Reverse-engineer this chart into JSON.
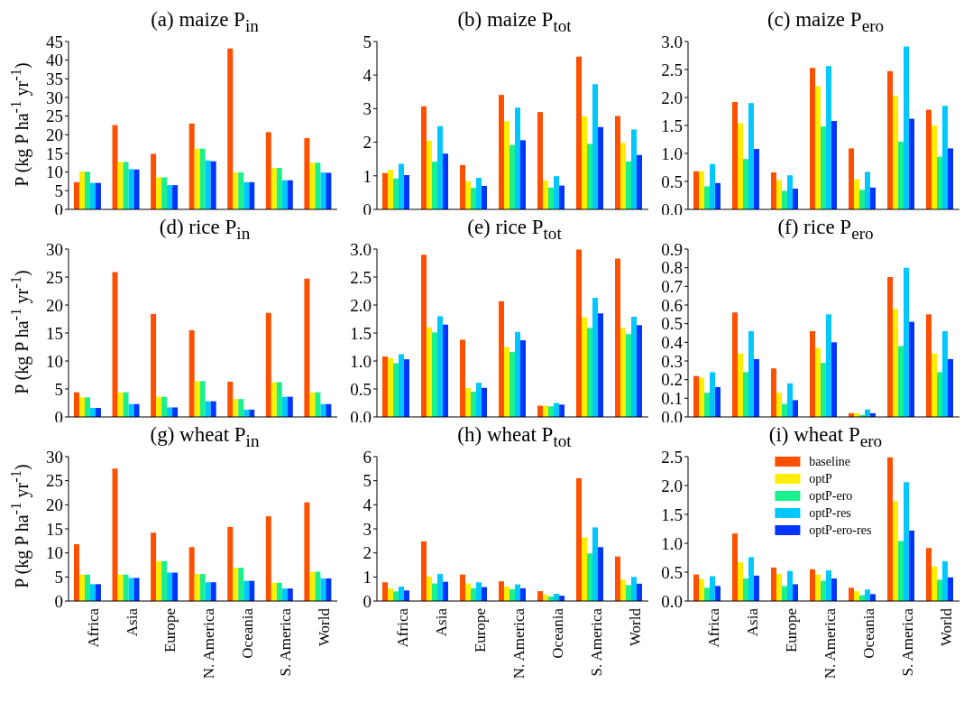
{
  "chart_data": [
    {
      "type": "bar",
      "title": "(a) maize P$_{in}$",
      "ylabel": "P (kg P ha$^{-1}$ yr$^{-1}$)",
      "categories": [
        null,
        null,
        null,
        null,
        null,
        null,
        null
      ],
      "ylim": [
        0,
        45
      ],
      "yticks": [
        0,
        5,
        10,
        15,
        20,
        25,
        30,
        35,
        40,
        45
      ],
      "series": [
        {
          "color": "#ff5000",
          "values": [
            7.3,
            22.6,
            14.9,
            23.0,
            43.1,
            20.7,
            19.1
          ]
        },
        {
          "color": "#ffee00",
          "values": [
            10.1,
            12.7,
            8.6,
            16.3,
            9.9,
            11.1,
            12.5
          ]
        },
        {
          "color": "#1af08c",
          "values": [
            10.1,
            12.7,
            8.6,
            16.3,
            9.9,
            11.1,
            12.5
          ]
        },
        {
          "color": "#00c8ff",
          "values": [
            7.1,
            10.8,
            6.5,
            13.1,
            7.3,
            7.8,
            9.9
          ]
        },
        {
          "color": "#0035ff",
          "values": [
            7.1,
            10.7,
            6.5,
            12.9,
            7.3,
            7.8,
            9.8
          ]
        }
      ]
    },
    {
      "type": "bar",
      "title": "(b) maize P$_{tot}$",
      "categories": [
        null,
        null,
        null,
        null,
        null,
        null,
        null
      ],
      "ylim": [
        0,
        5
      ],
      "yticks": [
        0,
        1,
        2,
        3,
        4,
        5
      ],
      "series": [
        {
          "color": "#ff5000",
          "values": [
            1.08,
            3.07,
            1.32,
            3.41,
            2.9,
            4.55,
            2.78
          ]
        },
        {
          "color": "#ffee00",
          "values": [
            1.18,
            2.05,
            0.84,
            2.63,
            0.86,
            2.77,
            1.98
          ]
        },
        {
          "color": "#1af08c",
          "values": [
            0.92,
            1.42,
            0.64,
            1.92,
            0.65,
            1.95,
            1.43
          ]
        },
        {
          "color": "#00c8ff",
          "values": [
            1.36,
            2.48,
            0.94,
            3.03,
            0.99,
            3.73,
            2.38
          ]
        },
        {
          "color": "#0035ff",
          "values": [
            1.02,
            1.66,
            0.7,
            2.06,
            0.71,
            2.45,
            1.62
          ]
        }
      ]
    },
    {
      "type": "bar",
      "title": "(c) maize P$_{ero}$",
      "categories": [
        null,
        null,
        null,
        null,
        null,
        null,
        null
      ],
      "ylim": [
        0,
        3
      ],
      "yticks": [
        {
          "value": 0,
          "label": "0.0"
        },
        0.5,
        {
          "value": 1,
          "label": "1.0"
        },
        1.5,
        {
          "value": 2,
          "label": "2.0"
        },
        2.5,
        {
          "value": 3,
          "label": "3.0"
        }
      ],
      "series": [
        {
          "color": "#ff5000",
          "values": [
            0.68,
            1.92,
            0.66,
            2.53,
            1.09,
            2.47,
            1.78
          ]
        },
        {
          "color": "#ffee00",
          "values": [
            0.68,
            1.54,
            0.52,
            2.2,
            0.54,
            2.03,
            1.5
          ]
        },
        {
          "color": "#1af08c",
          "values": [
            0.41,
            0.9,
            0.33,
            1.48,
            0.35,
            1.21,
            0.94
          ]
        },
        {
          "color": "#00c8ff",
          "values": [
            0.81,
            1.9,
            0.61,
            2.56,
            0.67,
            2.91,
            1.85
          ]
        },
        {
          "color": "#0035ff",
          "values": [
            0.47,
            1.08,
            0.37,
            1.58,
            0.39,
            1.62,
            1.09
          ]
        }
      ]
    },
    {
      "type": "bar",
      "title": "(d) rice P$_{in}$",
      "ylabel": "P (kg P ha$^{-1}$ yr$^{-1}$)",
      "categories": [
        null,
        null,
        null,
        null,
        null,
        null,
        null
      ],
      "ylim": [
        0,
        30
      ],
      "yticks": [
        0,
        5,
        10,
        15,
        20,
        25,
        30
      ],
      "series": [
        {
          "color": "#ff5000",
          "values": [
            4.4,
            25.9,
            18.4,
            15.5,
            6.3,
            18.6,
            24.7
          ]
        },
        {
          "color": "#ffee00",
          "values": [
            3.5,
            4.4,
            3.6,
            6.4,
            3.2,
            6.2,
            4.4
          ]
        },
        {
          "color": "#1af08c",
          "values": [
            3.5,
            4.4,
            3.6,
            6.4,
            3.2,
            6.2,
            4.4
          ]
        },
        {
          "color": "#00c8ff",
          "values": [
            1.6,
            2.3,
            1.7,
            2.8,
            1.3,
            3.6,
            2.3
          ]
        },
        {
          "color": "#0035ff",
          "values": [
            1.6,
            2.3,
            1.7,
            2.8,
            1.3,
            3.6,
            2.3
          ]
        }
      ]
    },
    {
      "type": "bar",
      "title": "(e) rice P$_{tot}$",
      "categories": [
        null,
        null,
        null,
        null,
        null,
        null,
        null
      ],
      "ylim": [
        0,
        3
      ],
      "yticks": [
        {
          "value": 0,
          "label": "0.0"
        },
        0.5,
        {
          "value": 1,
          "label": "1.0"
        },
        1.5,
        {
          "value": 2,
          "label": "2.0"
        },
        2.5,
        {
          "value": 3,
          "label": "3.0"
        }
      ],
      "series": [
        {
          "color": "#ff5000",
          "values": [
            1.08,
            2.9,
            1.38,
            2.07,
            0.2,
            2.99,
            2.83
          ]
        },
        {
          "color": "#ffee00",
          "values": [
            1.05,
            1.6,
            0.52,
            1.25,
            0.2,
            1.78,
            1.59
          ]
        },
        {
          "color": "#1af08c",
          "values": [
            0.96,
            1.51,
            0.45,
            1.16,
            0.19,
            1.59,
            1.48
          ]
        },
        {
          "color": "#00c8ff",
          "values": [
            1.12,
            1.8,
            0.61,
            1.52,
            0.25,
            2.13,
            1.79
          ]
        },
        {
          "color": "#0035ff",
          "values": [
            1.03,
            1.65,
            0.52,
            1.37,
            0.22,
            1.85,
            1.64
          ]
        }
      ]
    },
    {
      "type": "bar",
      "title": "(f) rice P$_{ero}$",
      "categories": [
        null,
        null,
        null,
        null,
        null,
        null,
        null
      ],
      "ylim": [
        0,
        0.9
      ],
      "yticks": [
        {
          "value": 0,
          "label": "0.0"
        },
        0.1,
        0.2,
        0.3,
        0.4,
        0.5,
        0.6,
        0.7,
        0.8,
        0.9
      ],
      "series": [
        {
          "color": "#ff5000",
          "values": [
            0.22,
            0.56,
            0.26,
            0.46,
            0.02,
            0.75,
            0.55
          ]
        },
        {
          "color": "#ffee00",
          "values": [
            0.21,
            0.34,
            0.13,
            0.37,
            0.02,
            0.58,
            0.34
          ]
        },
        {
          "color": "#1af08c",
          "values": [
            0.13,
            0.24,
            0.07,
            0.29,
            0.01,
            0.38,
            0.24
          ]
        },
        {
          "color": "#00c8ff",
          "values": [
            0.24,
            0.46,
            0.18,
            0.55,
            0.04,
            0.8,
            0.46
          ]
        },
        {
          "color": "#0035ff",
          "values": [
            0.16,
            0.31,
            0.09,
            0.4,
            0.02,
            0.51,
            0.31
          ]
        }
      ]
    },
    {
      "type": "bar",
      "title": "(g) wheat P$_{in}$",
      "ylabel": "P (kg P ha$^{-1}$ yr$^{-1}$)",
      "categories": [
        "Africa",
        "Asia",
        "Europe",
        "N. America",
        "Oceania",
        "S. America",
        "World"
      ],
      "ylim": [
        0,
        30
      ],
      "yticks": [
        0,
        5,
        10,
        15,
        20,
        25,
        30
      ],
      "series": [
        {
          "color": "#ff5000",
          "values": [
            11.8,
            27.5,
            14.2,
            11.2,
            15.4,
            17.6,
            20.5
          ]
        },
        {
          "color": "#ffee00",
          "values": [
            5.5,
            5.5,
            8.3,
            5.6,
            6.9,
            3.8,
            6.1
          ]
        },
        {
          "color": "#1af08c",
          "values": [
            5.5,
            5.5,
            8.3,
            5.6,
            6.9,
            3.8,
            6.1
          ]
        },
        {
          "color": "#00c8ff",
          "values": [
            3.5,
            4.8,
            5.9,
            3.9,
            4.2,
            2.6,
            4.7
          ]
        },
        {
          "color": "#0035ff",
          "values": [
            3.5,
            4.8,
            5.9,
            3.9,
            4.2,
            2.6,
            4.7
          ]
        }
      ]
    },
    {
      "type": "bar",
      "title": "(h) wheat P$_{tot}$",
      "categories": [
        "Africa",
        "Asia",
        "Europe",
        "N. America",
        "Oceania",
        "S. America",
        "World"
      ],
      "ylim": [
        0,
        6
      ],
      "yticks": [
        0,
        1,
        2,
        3,
        4,
        5,
        6
      ],
      "series": [
        {
          "color": "#ff5000",
          "values": [
            0.78,
            2.48,
            1.1,
            0.82,
            0.41,
            5.1,
            1.85
          ]
        },
        {
          "color": "#ffee00",
          "values": [
            0.52,
            1.02,
            0.73,
            0.61,
            0.26,
            2.65,
            0.89
          ]
        },
        {
          "color": "#1af08c",
          "values": [
            0.4,
            0.73,
            0.53,
            0.49,
            0.19,
            1.98,
            0.66
          ]
        },
        {
          "color": "#00c8ff",
          "values": [
            0.6,
            1.13,
            0.78,
            0.69,
            0.3,
            3.06,
            1.0
          ]
        },
        {
          "color": "#0035ff",
          "values": [
            0.44,
            0.8,
            0.58,
            0.53,
            0.22,
            2.24,
            0.72
          ]
        }
      ]
    },
    {
      "type": "bar",
      "title": "(i) wheat P$_{ero}$",
      "categories": [
        "Africa",
        "Asia",
        "Europe",
        "N. America",
        "Oceania",
        "S. America",
        "World"
      ],
      "ylim": [
        0,
        2.5
      ],
      "yticks": [
        {
          "value": 0,
          "label": "0.0"
        },
        0.5,
        {
          "value": 1,
          "label": "1.0"
        },
        1.5,
        {
          "value": 2,
          "label": "2.0"
        },
        2.5
      ],
      "legend": "top",
      "series": [
        {
          "name": "baseline",
          "color": "#ff5000",
          "values": [
            0.46,
            1.17,
            0.58,
            0.55,
            0.23,
            2.49,
            0.92
          ]
        },
        {
          "name": "optP",
          "color": "#ffee00",
          "values": [
            0.38,
            0.67,
            0.47,
            0.46,
            0.17,
            1.73,
            0.6
          ]
        },
        {
          "name": "optP-ero",
          "color": "#1af08c",
          "values": [
            0.23,
            0.39,
            0.26,
            0.35,
            0.1,
            1.04,
            0.37
          ]
        },
        {
          "name": "optP-res",
          "color": "#00c8ff",
          "values": [
            0.43,
            0.76,
            0.52,
            0.53,
            0.2,
            2.06,
            0.69
          ]
        },
        {
          "name": "optP-ero-res",
          "color": "#0035ff",
          "values": [
            0.26,
            0.44,
            0.29,
            0.39,
            0.12,
            1.22,
            0.41
          ]
        }
      ]
    }
  ]
}
